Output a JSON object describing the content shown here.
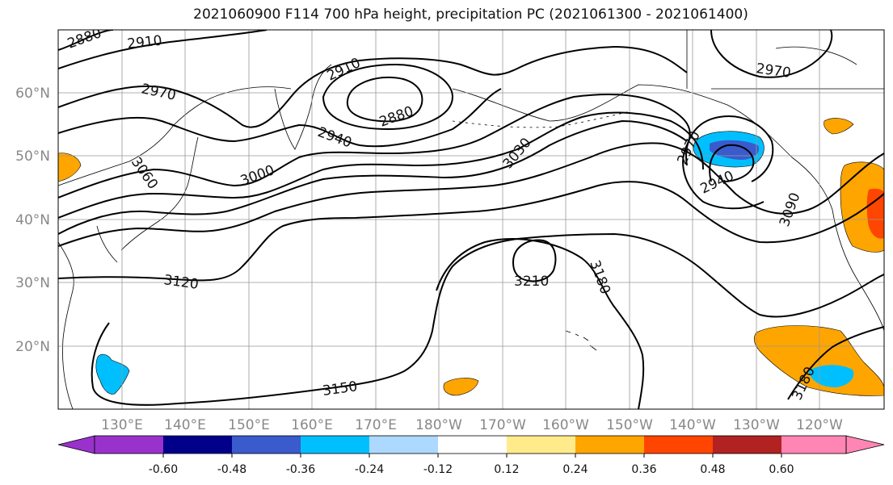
{
  "title": "2021060900 F114 700 hPa height, precipitation PC (2021061300 - 2021061400)",
  "map": {
    "lat_labels": [
      "60°N",
      "50°N",
      "40°N",
      "30°N",
      "20°N"
    ],
    "lon_labels": [
      "130°E",
      "140°E",
      "150°E",
      "160°E",
      "170°E",
      "180°W",
      "170°W",
      "160°W",
      "150°W",
      "140°W",
      "130°W",
      "120°W"
    ],
    "contour_labels": [
      "2880",
      "2910",
      "2970",
      "2910",
      "2880",
      "2940",
      "3000",
      "3060",
      "3030",
      "2970",
      "2940",
      "2970",
      "3090",
      "3120",
      "3210",
      "3180",
      "3150",
      "3180"
    ]
  },
  "colorbar": {
    "colors": [
      "#9932CC",
      "#00008B",
      "#3A5BCC",
      "#00BFFF",
      "#ADD8FF",
      "#FFFFFF",
      "#FFEB8A",
      "#FFA500",
      "#FF4500",
      "#B22222",
      "#FF86B4"
    ],
    "tick_labels": [
      "-0.60",
      "-0.48",
      "-0.36",
      "-0.24",
      "-0.12",
      "0.12",
      "0.24",
      "0.36",
      "0.48",
      "0.60"
    ]
  }
}
